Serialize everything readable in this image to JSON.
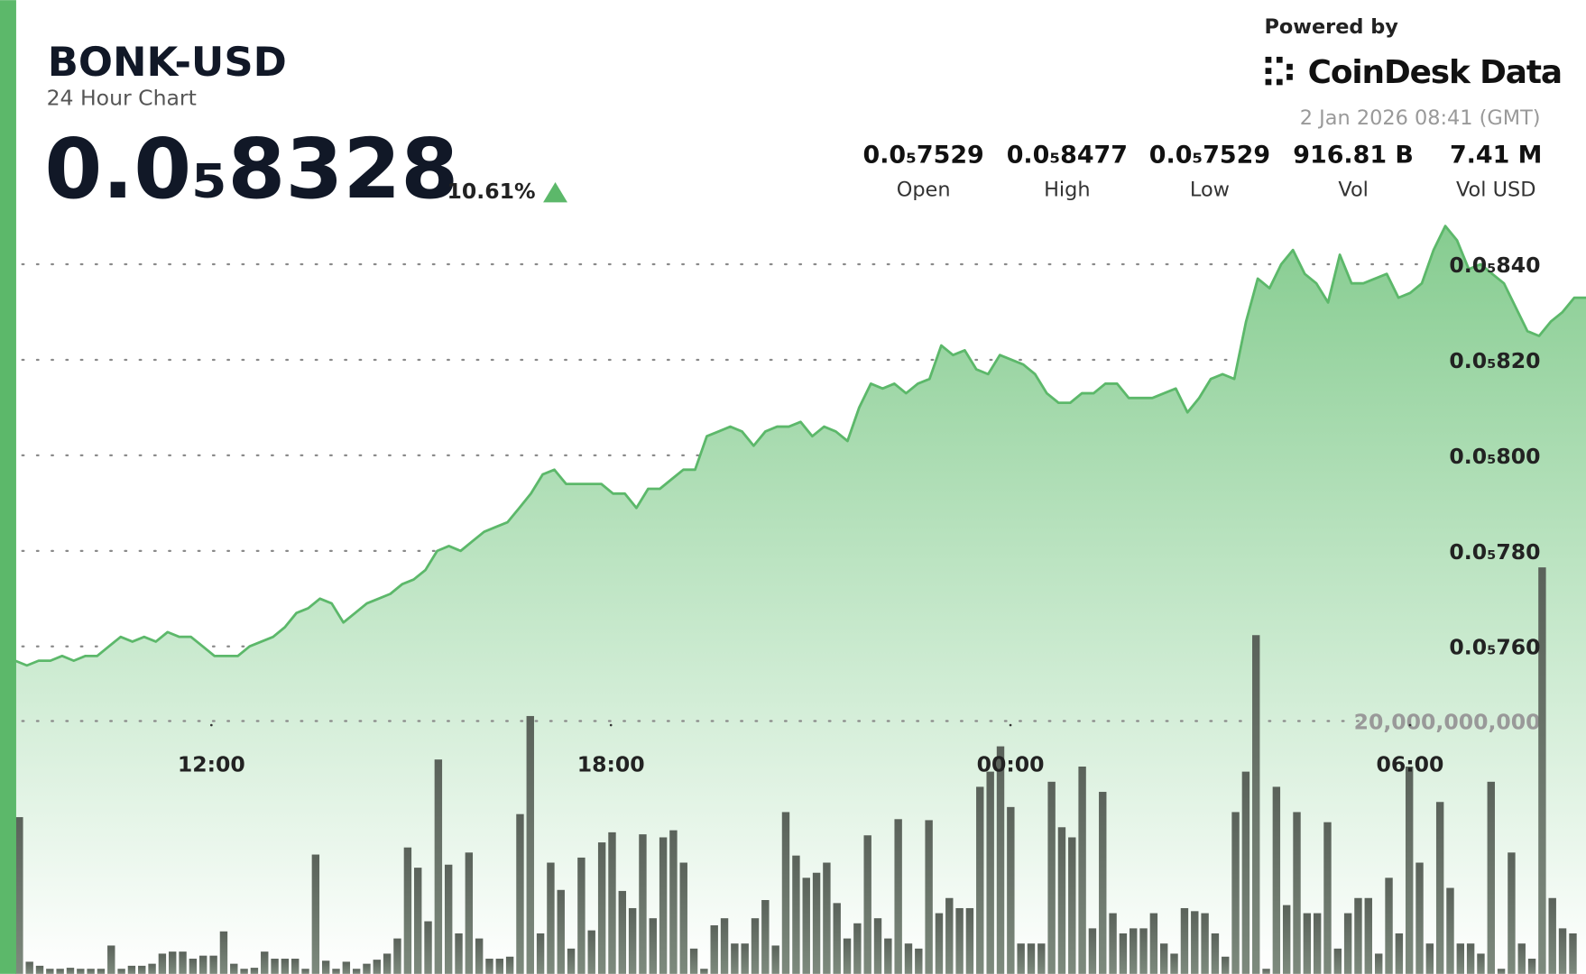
{
  "header": {
    "symbol": "BONK-USD",
    "subtitle": "24 Hour Chart",
    "price": "0.0₅8328",
    "change": "10.61%",
    "powered_by": "Powered by",
    "brand": "CoinDesk Data",
    "timestamp": "2 Jan 2026 08:41 (GMT)",
    "stats": [
      {
        "value": "0.0₅7529",
        "label": "Open"
      },
      {
        "value": "0.0₅8477",
        "label": "High"
      },
      {
        "value": "0.0₅7529",
        "label": "Low"
      },
      {
        "value": "916.81 B",
        "label": "Vol"
      },
      {
        "value": "7.41 M",
        "label": "Vol USD"
      }
    ]
  },
  "chart_data": [
    {
      "type": "line",
      "color": "#5cb86a",
      "values": [
        7.57e-06,
        7.56e-06,
        7.57e-06,
        7.57e-06,
        7.58e-06,
        7.57e-06,
        7.58e-06,
        7.58e-06,
        7.6e-06,
        7.62e-06,
        7.61e-06,
        7.62e-06,
        7.61e-06,
        7.63e-06,
        7.62e-06,
        7.62e-06,
        7.6e-06,
        7.58e-06,
        7.58e-06,
        7.58e-06,
        7.6e-06,
        7.61e-06,
        7.62e-06,
        7.64e-06,
        7.67e-06,
        7.68e-06,
        7.7e-06,
        7.69e-06,
        7.65e-06,
        7.67e-06,
        7.69e-06,
        7.7e-06,
        7.71e-06,
        7.73e-06,
        7.74e-06,
        7.76e-06,
        7.8e-06,
        7.81e-06,
        7.8e-06,
        7.82e-06,
        7.84e-06,
        7.85e-06,
        7.86e-06,
        7.89e-06,
        7.92e-06,
        7.96e-06,
        7.97e-06,
        7.94e-06,
        7.94e-06,
        7.94e-06,
        7.94e-06,
        7.92e-06,
        7.92e-06,
        7.89e-06,
        7.93e-06,
        7.93e-06,
        7.95e-06,
        7.97e-06,
        7.97e-06,
        8.04e-06,
        8.05e-06,
        8.06e-06,
        8.05e-06,
        8.02e-06,
        8.05e-06,
        8.06e-06,
        8.06e-06,
        8.07e-06,
        8.04e-06,
        8.06e-06,
        8.05e-06,
        8.03e-06,
        8.1e-06,
        8.15e-06,
        8.14e-06,
        8.15e-06,
        8.13e-06,
        8.15e-06,
        8.16e-06,
        8.23e-06,
        8.21e-06,
        8.22e-06,
        8.18e-06,
        8.17e-06,
        8.21e-06,
        8.2e-06,
        8.19e-06,
        8.17e-06,
        8.13e-06,
        8.11e-06,
        8.11e-06,
        8.13e-06,
        8.13e-06,
        8.15e-06,
        8.15e-06,
        8.12e-06,
        8.12e-06,
        8.12e-06,
        8.13e-06,
        8.14e-06,
        8.09e-06,
        8.12e-06,
        8.16e-06,
        8.17e-06,
        8.16e-06,
        8.28e-06,
        8.37e-06,
        8.35e-06,
        8.4e-06,
        8.43e-06,
        8.38e-06,
        8.36e-06,
        8.32e-06,
        8.42e-06,
        8.36e-06,
        8.36e-06,
        8.37e-06,
        8.38e-06,
        8.33e-06,
        8.34e-06,
        8.36e-06,
        8.43e-06,
        8.48e-06,
        8.45e-06,
        8.39e-06,
        8.4e-06,
        8.38e-06,
        8.36e-06,
        8.31e-06,
        8.26e-06,
        8.25e-06,
        8.28e-06,
        8.3e-06,
        8.33e-06,
        8.33e-06
      ],
      "ylim": [
        7.45e-06,
        8.5e-06
      ],
      "yticks": [
        {
          "value": 7.6e-06,
          "label": "0.0₅760"
        },
        {
          "value": 7.8e-06,
          "label": "0.0₅780"
        },
        {
          "value": 8e-06,
          "label": "0.0₅800"
        },
        {
          "value": 8.2e-06,
          "label": "0.0₅820"
        },
        {
          "value": 8.4e-06,
          "label": "0.0₅840"
        }
      ],
      "xticks": [
        "12:00",
        "18:00",
        "00:00",
        "06:00"
      ],
      "grid": true
    },
    {
      "type": "bar",
      "color": "#646e64",
      "values": [
        12400000000.0,
        960000000.0,
        640000000.0,
        400000000.0,
        400000000.0,
        480000000.0,
        400000000.0,
        400000000.0,
        400000000.0,
        2240000000.0,
        400000000.0,
        640000000.0,
        640000000.0,
        800000000.0,
        1600000000.0,
        1760000000.0,
        1760000000.0,
        1200000000.0,
        1440000000.0,
        1440000000.0,
        3360000000.0,
        800000000.0,
        400000000.0,
        480000000.0,
        1760000000.0,
        1200000000.0,
        1200000000.0,
        1200000000.0,
        400000000.0,
        9440000000.0,
        1040000000.0,
        400000000.0,
        960000000.0,
        400000000.0,
        800000000.0,
        1120000000.0,
        1600000000.0,
        2800000000.0,
        10000000000.0,
        8400000000.0,
        4160000000.0,
        16960000000.0,
        8640000000.0,
        3200000000.0,
        9600000000.0,
        2800000000.0,
        1200000000.0,
        1200000000.0,
        1360000000.0,
        12640000000.0,
        20400000000.0,
        3200000000.0,
        8800000000.0,
        6640000000.0,
        2000000000.0,
        9200000000.0,
        3440000000.0,
        10400000000.0,
        11200000000.0,
        6560000000.0,
        5200000000.0,
        11040000000.0,
        4400000000.0,
        10800000000.0,
        11360000000.0,
        8800000000.0,
        2000000000.0,
        400000000.0,
        3840000000.0,
        4400000000.0,
        2400000000.0,
        2400000000.0,
        4400000000.0,
        5840000000.0,
        2240000000.0,
        12800000000.0,
        9360000000.0,
        7600000000.0,
        8000000000.0,
        8800000000.0,
        5600000000.0,
        2800000000.0,
        4000000000.0,
        10960000000.0,
        4400000000.0,
        2800000000.0,
        12240000000.0,
        2400000000.0,
        2000000000.0,
        12160000000.0,
        4800000000.0,
        6000000000.0,
        5200000000.0,
        5200000000.0,
        14800000000.0,
        16000000000.0,
        18000000000.0,
        13200000000.0,
        2400000000.0,
        2400000000.0,
        2400000000.0,
        15200000000.0,
        11600000000.0,
        10800000000.0,
        16400000000.0,
        3600000000.0,
        14400000000.0,
        4800000000.0,
        3200000000.0,
        3600000000.0,
        3600000000.0,
        4800000000.0,
        2400000000.0,
        1600000000.0,
        5200000000.0,
        4960000000.0,
        4800000000.0,
        3200000000.0,
        1360000000.0,
        12800000000.0,
        16000000000.0,
        26800000000.0,
        400000000.0,
        14800000000.0,
        5440000000.0,
        12800000000.0,
        4800000000.0,
        4800000000.0,
        12000000000.0,
        2000000000.0,
        4800000000.0,
        6000000000.0,
        6000000000.0,
        1600000000.0,
        7600000000.0,
        3200000000.0,
        16400000000.0,
        8800000000.0,
        2400000000.0,
        13600000000.0,
        6800000000.0,
        2400000000.0,
        2400000000.0,
        1600000000.0,
        15200000000.0,
        400000000.0,
        9600000000.0,
        2400000000.0,
        1200000000.0,
        32160000000.0,
        6000000000.0,
        3600000000.0,
        3200000000.0
      ],
      "ylim": [
        0,
        40000000000
      ],
      "yticks": [
        {
          "value": 20000000000,
          "label": "20,000,000,000"
        }
      ],
      "grid": true
    }
  ]
}
